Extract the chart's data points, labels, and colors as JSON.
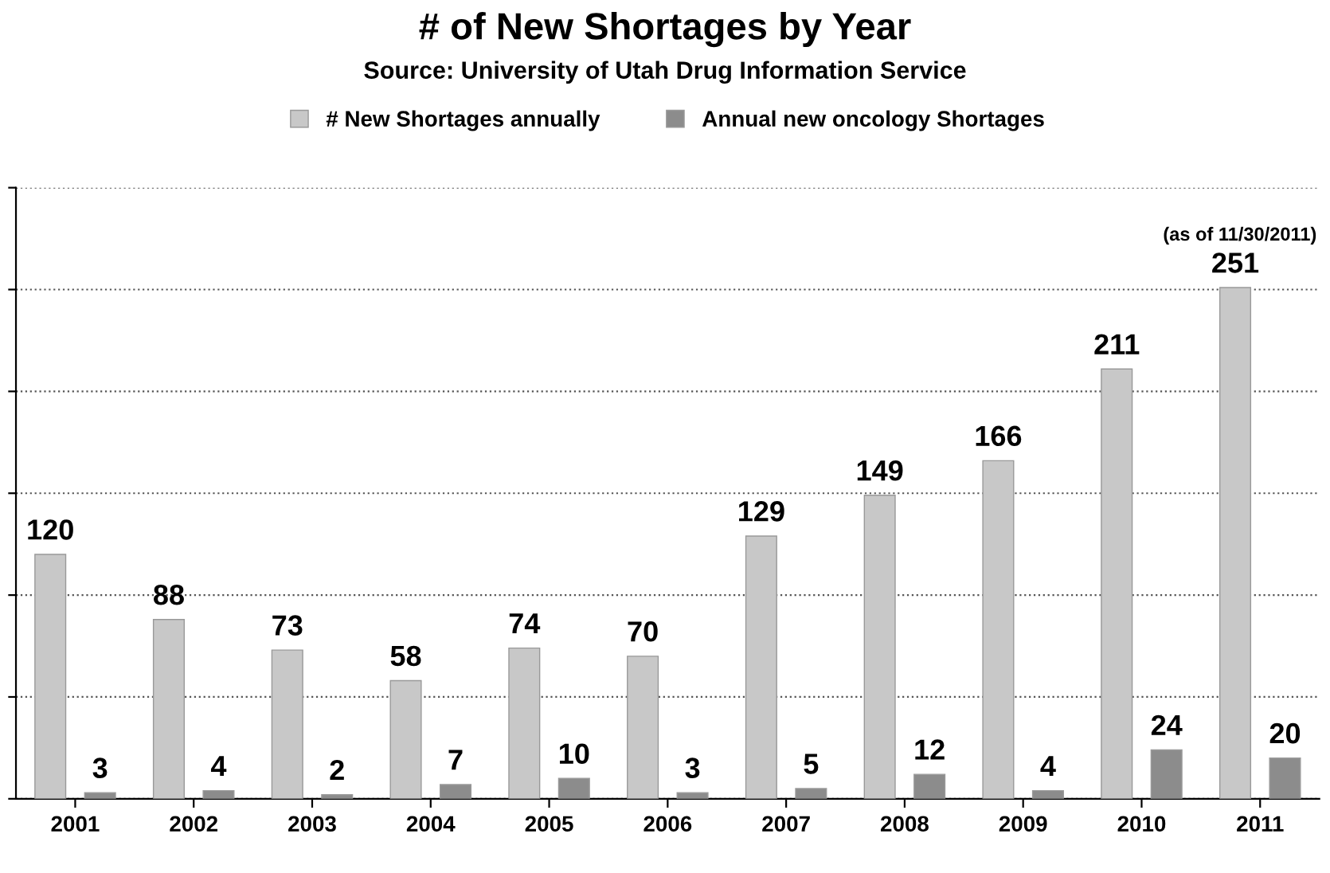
{
  "chart_data": {
    "type": "bar",
    "title": "# of New Shortages by Year",
    "subtitle": "Source: University of Utah Drug Information Service",
    "categories": [
      "2001",
      "2002",
      "2003",
      "2004",
      "2005",
      "2006",
      "2007",
      "2008",
      "2009",
      "2010",
      "2011"
    ],
    "series": [
      {
        "name": "# New Shortages annually",
        "color": "#c8c8c8",
        "values": [
          120,
          88,
          73,
          58,
          74,
          70,
          129,
          149,
          166,
          211,
          251
        ]
      },
      {
        "name": "Annual new oncology Shortages",
        "color": "#8c8c8c",
        "values": [
          3,
          4,
          2,
          7,
          10,
          3,
          5,
          12,
          4,
          24,
          20
        ]
      }
    ],
    "ylim": [
      0,
      300
    ],
    "yticks": [
      {
        "value": 0,
        "label": null
      },
      {
        "value": 50,
        "label": null
      },
      {
        "value": 100,
        "label": null
      },
      {
        "value": 150,
        "label": null
      },
      {
        "value": 200,
        "label": null
      },
      {
        "value": 250,
        "label": null
      },
      {
        "value": 300,
        "label": null
      }
    ],
    "tick_labels": "x",
    "grid": "y",
    "legend": "top",
    "data_labels": true,
    "annotations": [
      "(as of 11/30/2011)"
    ]
  }
}
